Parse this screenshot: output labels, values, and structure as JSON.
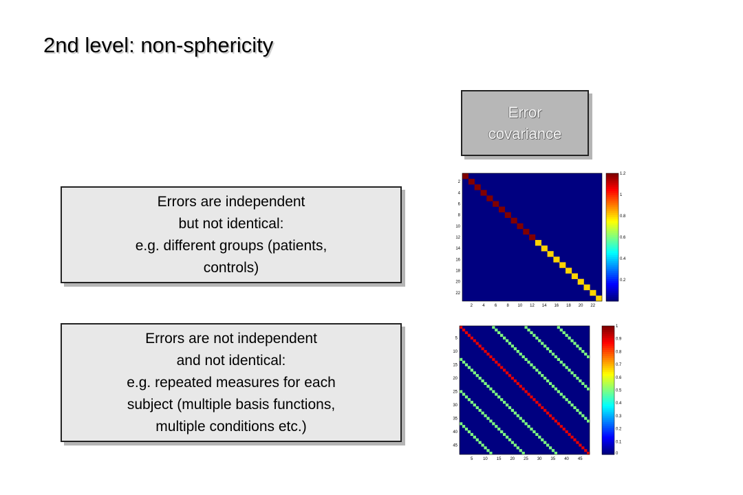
{
  "title": "2nd level: non-sphericity",
  "header_box": {
    "line1": "Error",
    "line2": "covariance"
  },
  "box_independent": {
    "lines": [
      "Errors are independent",
      "but not identical:",
      "e.g. different groups (patients,",
      "controls)"
    ]
  },
  "box_not_independent": {
    "lines": [
      "Errors are not independent",
      "and not identical:",
      "e.g. repeated measures for each",
      "subject (multiple basis functions,",
      "multiple conditions etc.)"
    ]
  },
  "chart_data": [
    {
      "type": "heatmap",
      "description_key": "independent-not-identical",
      "size": 23,
      "diagonal_values": [
        1.2,
        1.2,
        1.2,
        1.2,
        1.2,
        1.2,
        1.2,
        1.2,
        1.2,
        1.2,
        1.2,
        1.2,
        0.8,
        0.8,
        0.8,
        0.8,
        0.8,
        0.8,
        0.8,
        0.8,
        0.8,
        0.8,
        0.8
      ],
      "off_diagonal_value": 0,
      "x_ticks": [
        "2",
        "4",
        "6",
        "8",
        "10",
        "12",
        "14",
        "16",
        "18",
        "20",
        "22"
      ],
      "y_ticks": [
        "2",
        "4",
        "6",
        "8",
        "10",
        "12",
        "14",
        "16",
        "18",
        "20",
        "22"
      ],
      "colorbar_ticks": [
        "1.2",
        "1",
        "0.8",
        "0.6",
        "0.4",
        "0.2"
      ],
      "clim": [
        0,
        1.2
      ]
    },
    {
      "type": "heatmap",
      "description_key": "not-independent-not-identical",
      "size": 48,
      "diagonal_value": 0.9,
      "off_diagonal_bands": [
        {
          "offset": 12,
          "value": 0.5
        },
        {
          "offset": 24,
          "value": 0.5
        },
        {
          "offset": 36,
          "value": 0.5
        }
      ],
      "off_diagonal_value": 0,
      "x_ticks": [
        "5",
        "10",
        "15",
        "20",
        "25",
        "30",
        "35",
        "40",
        "45"
      ],
      "y_ticks": [
        "5",
        "10",
        "15",
        "20",
        "25",
        "30",
        "35",
        "40",
        "45"
      ],
      "colorbar_ticks": [
        "1",
        "0.9",
        "0.8",
        "0.7",
        "0.6",
        "0.5",
        "0.4",
        "0.3",
        "0.2",
        "0.1",
        "0"
      ],
      "clim": [
        0,
        1
      ]
    }
  ]
}
